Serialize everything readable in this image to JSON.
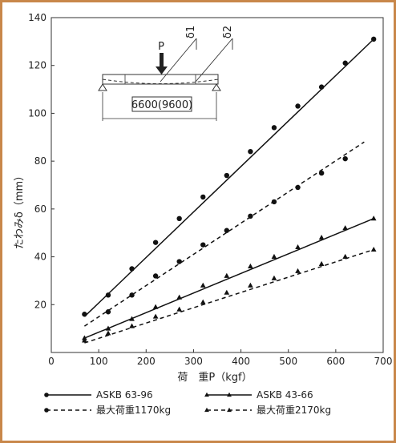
{
  "chart_data": {
    "type": "line",
    "xlabel": "荷　重P（kgf）",
    "ylabel": "たわみδ（mm）",
    "xlim": [
      0,
      700
    ],
    "ylim": [
      0,
      140
    ],
    "x_ticks": [
      "0",
      "100",
      "200",
      "300",
      "400",
      "500",
      "600",
      "700"
    ],
    "y_ticks": [
      "20",
      "40",
      "60",
      "80",
      "100",
      "120",
      "140"
    ],
    "grid": false,
    "legend_position": "bottom",
    "series": [
      {
        "name": "ASKB 63-96",
        "line_style": "solid",
        "marker": "circle",
        "fit_line": [
          [
            70,
            15
          ],
          [
            680,
            131
          ]
        ],
        "points": [
          [
            70,
            16
          ],
          [
            120,
            24
          ],
          [
            170,
            35
          ],
          [
            220,
            46
          ],
          [
            270,
            56
          ],
          [
            320,
            65
          ],
          [
            370,
            74
          ],
          [
            420,
            84
          ],
          [
            470,
            94
          ],
          [
            520,
            103
          ],
          [
            570,
            111
          ],
          [
            620,
            121
          ],
          [
            680,
            131
          ]
        ]
      },
      {
        "name": "最大荷重1170kg",
        "line_style": "dashed",
        "marker": "circle",
        "fit_line": [
          [
            70,
            11
          ],
          [
            660,
            88
          ]
        ],
        "points": [
          [
            120,
            17
          ],
          [
            170,
            24
          ],
          [
            220,
            32
          ],
          [
            270,
            38
          ],
          [
            320,
            45
          ],
          [
            370,
            51
          ],
          [
            420,
            57
          ],
          [
            470,
            63
          ],
          [
            520,
            69
          ],
          [
            570,
            75
          ],
          [
            620,
            81
          ]
        ]
      },
      {
        "name": "ASKB 43-66",
        "line_style": "solid",
        "marker": "triangle",
        "fit_line": [
          [
            70,
            6
          ],
          [
            680,
            56
          ]
        ],
        "points": [
          [
            70,
            6
          ],
          [
            120,
            10
          ],
          [
            170,
            14
          ],
          [
            220,
            19
          ],
          [
            270,
            23
          ],
          [
            320,
            28
          ],
          [
            370,
            32
          ],
          [
            420,
            36
          ],
          [
            470,
            40
          ],
          [
            520,
            44
          ],
          [
            570,
            48
          ],
          [
            620,
            52
          ],
          [
            680,
            56
          ]
        ]
      },
      {
        "name": "最大荷重2170kg",
        "line_style": "dashed",
        "marker": "triangle",
        "fit_line": [
          [
            70,
            4
          ],
          [
            680,
            43
          ]
        ],
        "points": [
          [
            70,
            5
          ],
          [
            120,
            8
          ],
          [
            170,
            11
          ],
          [
            220,
            15
          ],
          [
            270,
            18
          ],
          [
            320,
            21
          ],
          [
            370,
            25
          ],
          [
            420,
            28
          ],
          [
            470,
            31
          ],
          [
            520,
            34
          ],
          [
            570,
            37
          ],
          [
            620,
            40
          ],
          [
            680,
            43
          ]
        ]
      }
    ]
  },
  "inset": {
    "load_label": "P",
    "delta1_label": "δ1",
    "delta2_label": "δ2",
    "span_label": "6600(9600)"
  }
}
